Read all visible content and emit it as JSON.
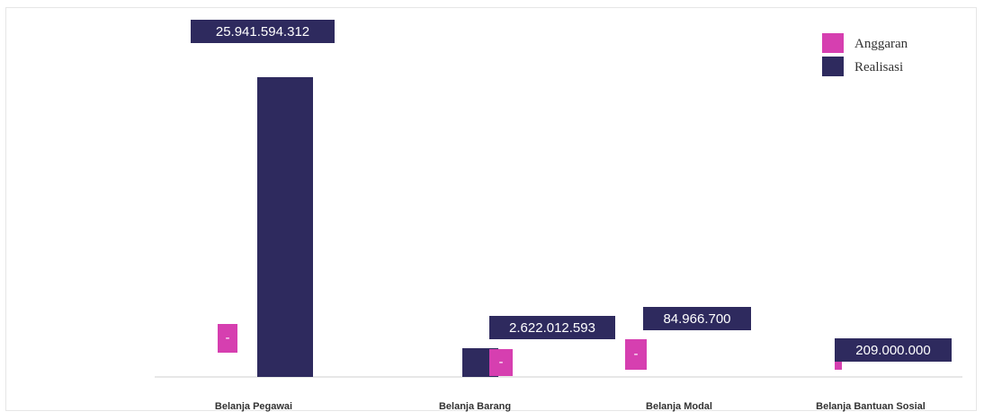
{
  "chart_data": {
    "type": "bar",
    "categories": [
      "Belanja Pegawai",
      "Belanja Barang",
      "Belanja Modal",
      "Belanja Bantuan Sosial"
    ],
    "series": [
      {
        "name": "Anggaran",
        "color": "#d63fb0",
        "values": [
          0,
          0,
          0,
          0
        ],
        "labels": [
          "-",
          "-",
          "-",
          ""
        ]
      },
      {
        "name": "Realisasi",
        "color": "#2e2a5e",
        "values": [
          25941594312,
          2622012593,
          84966700,
          209000000
        ],
        "labels": [
          "25.941.594.312",
          "2.622.012.593",
          "84.966.700",
          "209.000.000"
        ]
      }
    ],
    "legend": {
      "position": "top-right"
    },
    "grid": false
  }
}
